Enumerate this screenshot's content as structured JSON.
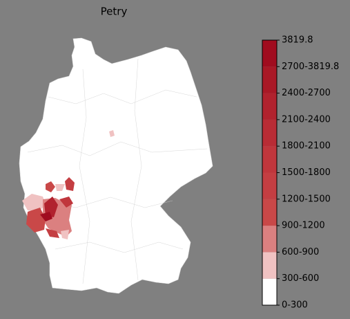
{
  "title": "Petry",
  "colorbar": {
    "labels": [
      "0-300",
      "300-600",
      "600-900",
      "900-1200",
      "1200-1500",
      "1500-1800",
      "1800-2100",
      "2100-2400",
      "2400-2700",
      "2700-3819.8",
      "3819.8"
    ],
    "colors": [
      "#ffffff",
      "#f0c2c2",
      "#db8080",
      "#c94848",
      "#c43e42",
      "#c0363c",
      "#b92c35",
      "#b1222e",
      "#a91826",
      "#a00c1f"
    ]
  }
}
